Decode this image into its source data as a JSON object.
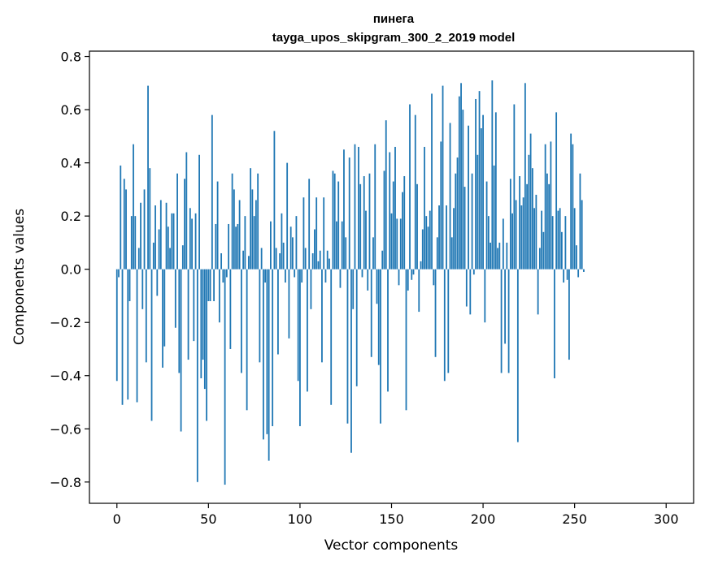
{
  "chart_data": {
    "type": "bar",
    "title": "пинега",
    "subtitle": "tayga_upos_skipgram_300_2_2019 model",
    "xlabel": "Vector components",
    "ylabel": "Components values",
    "xlim": [
      -15,
      315
    ],
    "ylim": [
      -0.88,
      0.82
    ],
    "xticks": [
      0,
      50,
      100,
      150,
      200,
      250,
      300
    ],
    "yticks": [
      -0.8,
      -0.6,
      -0.4,
      -0.2,
      0.0,
      0.2,
      0.4,
      0.6,
      0.8
    ],
    "grid": false,
    "bar_color": "#1f77b4",
    "series": [
      {
        "x_start": 0,
        "values": [
          -0.42,
          -0.03,
          0.39,
          -0.51,
          0.34,
          0.3,
          -0.49,
          -0.12,
          0.2,
          0.47,
          0.2,
          -0.5,
          0.08,
          0.25,
          -0.15,
          0.3,
          -0.35,
          0.69,
          0.38,
          -0.57,
          0.1,
          0.24,
          -0.1,
          0.15,
          0.26,
          -0.37,
          -0.29,
          0.25,
          0.16,
          0.08,
          0.21,
          0.21,
          -0.22,
          0.36,
          -0.39,
          -0.61,
          0.09,
          0.34,
          0.44,
          -0.34,
          0.23,
          0.19,
          -0.27,
          0.21,
          -0.8,
          0.43,
          -0.41,
          -0.34,
          -0.45,
          -0.57,
          -0.12,
          -0.12,
          0.58,
          -0.12,
          0.17,
          0.33,
          -0.2,
          0.06,
          -0.05,
          -0.81,
          -0.03,
          0.17,
          -0.3,
          0.36,
          0.3,
          0.16,
          0.17,
          0.26,
          -0.39,
          0.07,
          0.2,
          -0.53,
          0.05,
          0.38,
          0.3,
          0.2,
          0.26,
          0.36,
          -0.35,
          0.08,
          -0.64,
          -0.05,
          -0.62,
          -0.72,
          0.18,
          -0.59,
          0.52,
          0.08,
          -0.32,
          0.06,
          0.21,
          0.1,
          -0.05,
          0.4,
          -0.26,
          0.16,
          0.12,
          -0.03,
          0.2,
          -0.42,
          -0.59,
          -0.05,
          0.27,
          0.08,
          -0.46,
          0.34,
          -0.15,
          0.06,
          0.15,
          0.27,
          0.03,
          0.07,
          -0.35,
          0.27,
          -0.05,
          0.07,
          0.04,
          -0.51,
          0.37,
          0.36,
          0.18,
          0.33,
          -0.07,
          0.18,
          0.45,
          0.12,
          -0.58,
          0.42,
          -0.69,
          -0.15,
          0.47,
          -0.44,
          0.46,
          0.32,
          -0.03,
          0.35,
          0.22,
          -0.08,
          0.36,
          -0.33,
          0.12,
          0.47,
          -0.13,
          -0.36,
          -0.58,
          0.07,
          0.37,
          0.56,
          -0.46,
          0.44,
          0.21,
          0.33,
          0.46,
          0.19,
          -0.06,
          0.19,
          0.29,
          0.35,
          -0.53,
          -0.08,
          0.62,
          -0.04,
          -0.02,
          0.58,
          0.32,
          -0.16,
          0.03,
          0.15,
          0.46,
          0.2,
          0.16,
          0.22,
          0.66,
          -0.06,
          -0.33,
          0.12,
          0.24,
          0.48,
          0.69,
          -0.42,
          0.24,
          -0.39,
          0.55,
          0.12,
          0.23,
          0.36,
          0.42,
          0.65,
          0.7,
          0.6,
          0.31,
          -0.14,
          0.54,
          -0.17,
          0.36,
          -0.02,
          0.64,
          0.43,
          0.67,
          0.53,
          0.58,
          -0.2,
          0.33,
          0.2,
          0.1,
          0.71,
          0.39,
          0.59,
          0.08,
          0.1,
          -0.39,
          0.19,
          -0.28,
          0.1,
          -0.39,
          0.34,
          0.21,
          0.62,
          0.26,
          -0.65,
          0.35,
          0.24,
          0.27,
          0.7,
          0.32,
          0.43,
          0.51,
          0.38,
          0.23,
          0.28,
          -0.17,
          0.08,
          0.22,
          0.14,
          0.47,
          0.36,
          0.32,
          0.48,
          0.2,
          -0.41,
          0.59,
          0.22,
          0.23,
          0.14,
          -0.05,
          0.2,
          -0.04,
          -0.34,
          0.51,
          0.47,
          0.23,
          0.09,
          -0.03,
          0.36,
          0.26,
          -0.01
        ]
      }
    ]
  }
}
